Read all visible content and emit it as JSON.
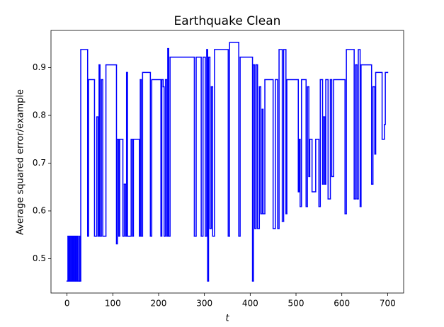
{
  "chart_data": {
    "type": "line",
    "drawstyle": "steps-post",
    "title": "Earthquake Clean",
    "xlabel": "t",
    "ylabel": "Average squared error/example",
    "xlim": [
      -35,
      735
    ],
    "ylim": [
      0.428,
      0.978
    ],
    "xticks": [
      0,
      100,
      200,
      300,
      400,
      500,
      600,
      700
    ],
    "yticks": [
      0.5,
      0.6,
      0.7,
      0.8,
      0.9
    ],
    "color": "#0000ff",
    "x": [
      0,
      2,
      4,
      6,
      8,
      10,
      12,
      14,
      16,
      18,
      20,
      22,
      24,
      27,
      28,
      30,
      45,
      47,
      60,
      65,
      68,
      70,
      72,
      75,
      78,
      85,
      108,
      110,
      113,
      115,
      122,
      125,
      128,
      130,
      132,
      140,
      143,
      145,
      158,
      160,
      162,
      165,
      182,
      185,
      205,
      207,
      210,
      212,
      215,
      218,
      220,
      222,
      225,
      278,
      282,
      293,
      297,
      302,
      305,
      307,
      309,
      312,
      315,
      318,
      322,
      352,
      355,
      375,
      378,
      405,
      407,
      410,
      413,
      416,
      420,
      423,
      426,
      428,
      432,
      450,
      455,
      460,
      463,
      470,
      473,
      478,
      480,
      505,
      507,
      509,
      512,
      522,
      525,
      528,
      530,
      535,
      543,
      550,
      553,
      558,
      560,
      563,
      565,
      570,
      575,
      578,
      582,
      607,
      610,
      627,
      630,
      633,
      636,
      640,
      642,
      665,
      668,
      672,
      674,
      688,
      693,
      695,
      700
    ],
    "values": [
      0.453,
      0.547,
      0.453,
      0.547,
      0.453,
      0.547,
      0.453,
      0.547,
      0.453,
      0.547,
      0.453,
      0.547,
      0.453,
      0.547,
      0.453,
      0.938,
      0.547,
      0.875,
      0.547,
      0.797,
      0.547,
      0.906,
      0.547,
      0.875,
      0.547,
      0.906,
      0.531,
      0.75,
      0.547,
      0.75,
      0.547,
      0.656,
      0.547,
      0.89,
      0.547,
      0.75,
      0.547,
      0.75,
      0.547,
      0.875,
      0.547,
      0.89,
      0.547,
      0.875,
      0.547,
      0.875,
      0.86,
      0.547,
      0.875,
      0.547,
      0.94,
      0.547,
      0.922,
      0.547,
      0.922,
      0.547,
      0.922,
      0.547,
      0.938,
      0.453,
      0.922,
      0.563,
      0.86,
      0.547,
      0.938,
      0.547,
      0.953,
      0.547,
      0.922,
      0.453,
      0.906,
      0.563,
      0.906,
      0.563,
      0.86,
      0.594,
      0.813,
      0.594,
      0.875,
      0.563,
      0.875,
      0.563,
      0.938,
      0.578,
      0.938,
      0.594,
      0.875,
      0.64,
      0.75,
      0.609,
      0.875,
      0.609,
      0.86,
      0.672,
      0.75,
      0.64,
      0.75,
      0.609,
      0.875,
      0.656,
      0.797,
      0.656,
      0.875,
      0.625,
      0.875,
      0.672,
      0.875,
      0.594,
      0.938,
      0.625,
      0.906,
      0.625,
      0.938,
      0.609,
      0.906,
      0.656,
      0.86,
      0.719,
      0.89,
      0.75,
      0.781,
      0.89,
      0.89
    ]
  }
}
